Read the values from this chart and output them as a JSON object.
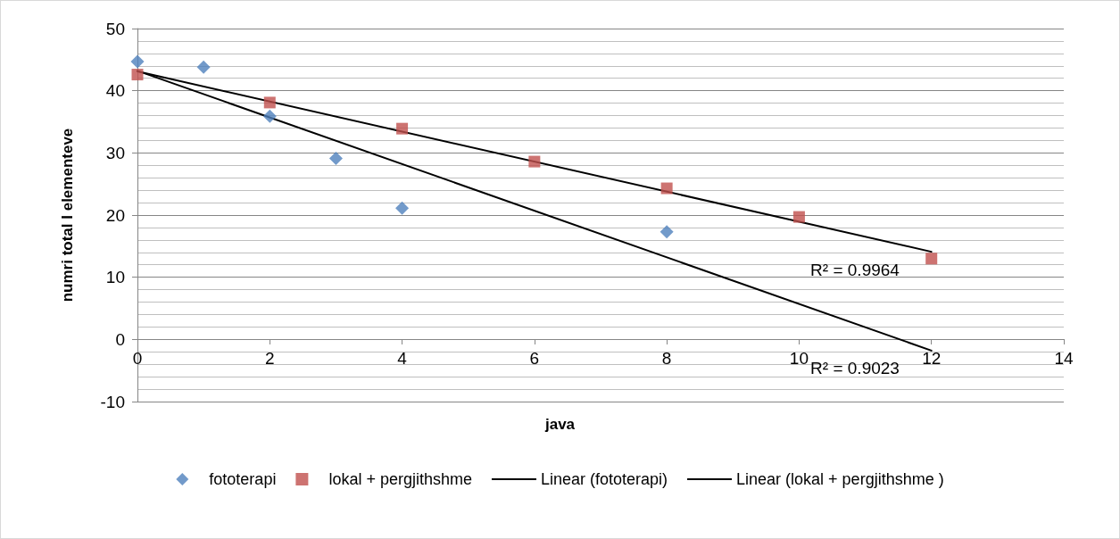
{
  "chart_data": {
    "type": "scatter",
    "xlabel": "java",
    "ylabel": "numri total I elementeve",
    "xlim": [
      0,
      14
    ],
    "xticks": [
      0,
      2,
      4,
      6,
      8,
      10,
      12,
      14
    ],
    "ylim": [
      -10,
      50
    ],
    "yticks": [
      -10,
      0,
      10,
      20,
      30,
      40,
      50
    ],
    "grid": "y",
    "legend": "bottom",
    "series": [
      {
        "name": "fototerapi",
        "color": "#4f81bd",
        "marker": "diamond",
        "x": [
          0,
          1,
          2,
          3,
          4,
          8
        ],
        "values": [
          44.7,
          43.8,
          35.9,
          29.1,
          21.1,
          17.3
        ]
      },
      {
        "name": "lokal + pergjithshme",
        "color": "#c0504d",
        "marker": "square",
        "x": [
          0,
          2,
          4,
          6,
          8,
          10,
          12
        ],
        "values": [
          42.6,
          38.1,
          33.9,
          28.6,
          24.3,
          19.7,
          13.0
        ]
      },
      {
        "name": "Linear (fototerapi)",
        "type": "line",
        "color": "#000000",
        "marker": "none",
        "x": [
          0,
          12
        ],
        "values": [
          43.2,
          -1.8
        ]
      },
      {
        "name": "Linear (lokal + pergjithshme )",
        "type": "line",
        "color": "#000000",
        "marker": "none",
        "x": [
          0,
          12
        ],
        "values": [
          43.1,
          14.1
        ]
      }
    ],
    "annotations": [
      "R² = 0.9964",
      "R² = 0.9023"
    ]
  }
}
